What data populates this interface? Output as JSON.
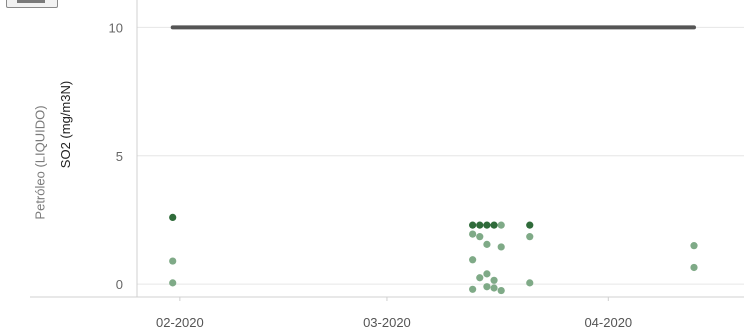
{
  "chart_data": {
    "type": "scatter",
    "group_label": "Petróleo (LIQUIDO)",
    "ylabel": "SO2 (mg/m3N)",
    "xlabel": "",
    "ylim": [
      -0.5,
      10.6
    ],
    "yticks": [
      "0",
      "5",
      "10"
    ],
    "xticks": [
      {
        "label": "02-2020",
        "date": "2020-02-01"
      },
      {
        "label": "03-2020",
        "date": "2020-03-01"
      },
      {
        "label": "04-2020",
        "date": "2020-04-01"
      }
    ],
    "limit_line": {
      "value": 10,
      "from": "2020-01-31",
      "to": "2020-04-13"
    },
    "series": [
      {
        "color": "#2f6b3a",
        "points": [
          {
            "x": "2020-01-31",
            "y": 2.6
          },
          {
            "x": "2020-03-13",
            "y": 2.3
          },
          {
            "x": "2020-03-14",
            "y": 2.3
          },
          {
            "x": "2020-03-15",
            "y": 2.3
          },
          {
            "x": "2020-03-16",
            "y": 2.3
          },
          {
            "x": "2020-03-21",
            "y": 2.3
          }
        ]
      },
      {
        "color": "#7faa87",
        "points": [
          {
            "x": "2020-01-31",
            "y": 0.9
          },
          {
            "x": "2020-01-31",
            "y": 0.05
          },
          {
            "x": "2020-03-13",
            "y": 1.95
          },
          {
            "x": "2020-03-13",
            "y": 0.95
          },
          {
            "x": "2020-03-13",
            "y": -0.2
          },
          {
            "x": "2020-03-14",
            "y": 1.85
          },
          {
            "x": "2020-03-14",
            "y": 0.25
          },
          {
            "x": "2020-03-15",
            "y": 1.55
          },
          {
            "x": "2020-03-15",
            "y": 0.4
          },
          {
            "x": "2020-03-15",
            "y": -0.1
          },
          {
            "x": "2020-03-16",
            "y": 0.15
          },
          {
            "x": "2020-03-16",
            "y": -0.15
          },
          {
            "x": "2020-03-17",
            "y": 2.3
          },
          {
            "x": "2020-03-17",
            "y": 1.45
          },
          {
            "x": "2020-03-17",
            "y": -0.25
          },
          {
            "x": "2020-03-21",
            "y": 1.85
          },
          {
            "x": "2020-03-21",
            "y": 0.05
          },
          {
            "x": "2020-04-13",
            "y": 1.5
          },
          {
            "x": "2020-04-13",
            "y": 0.65
          }
        ]
      }
    ]
  }
}
